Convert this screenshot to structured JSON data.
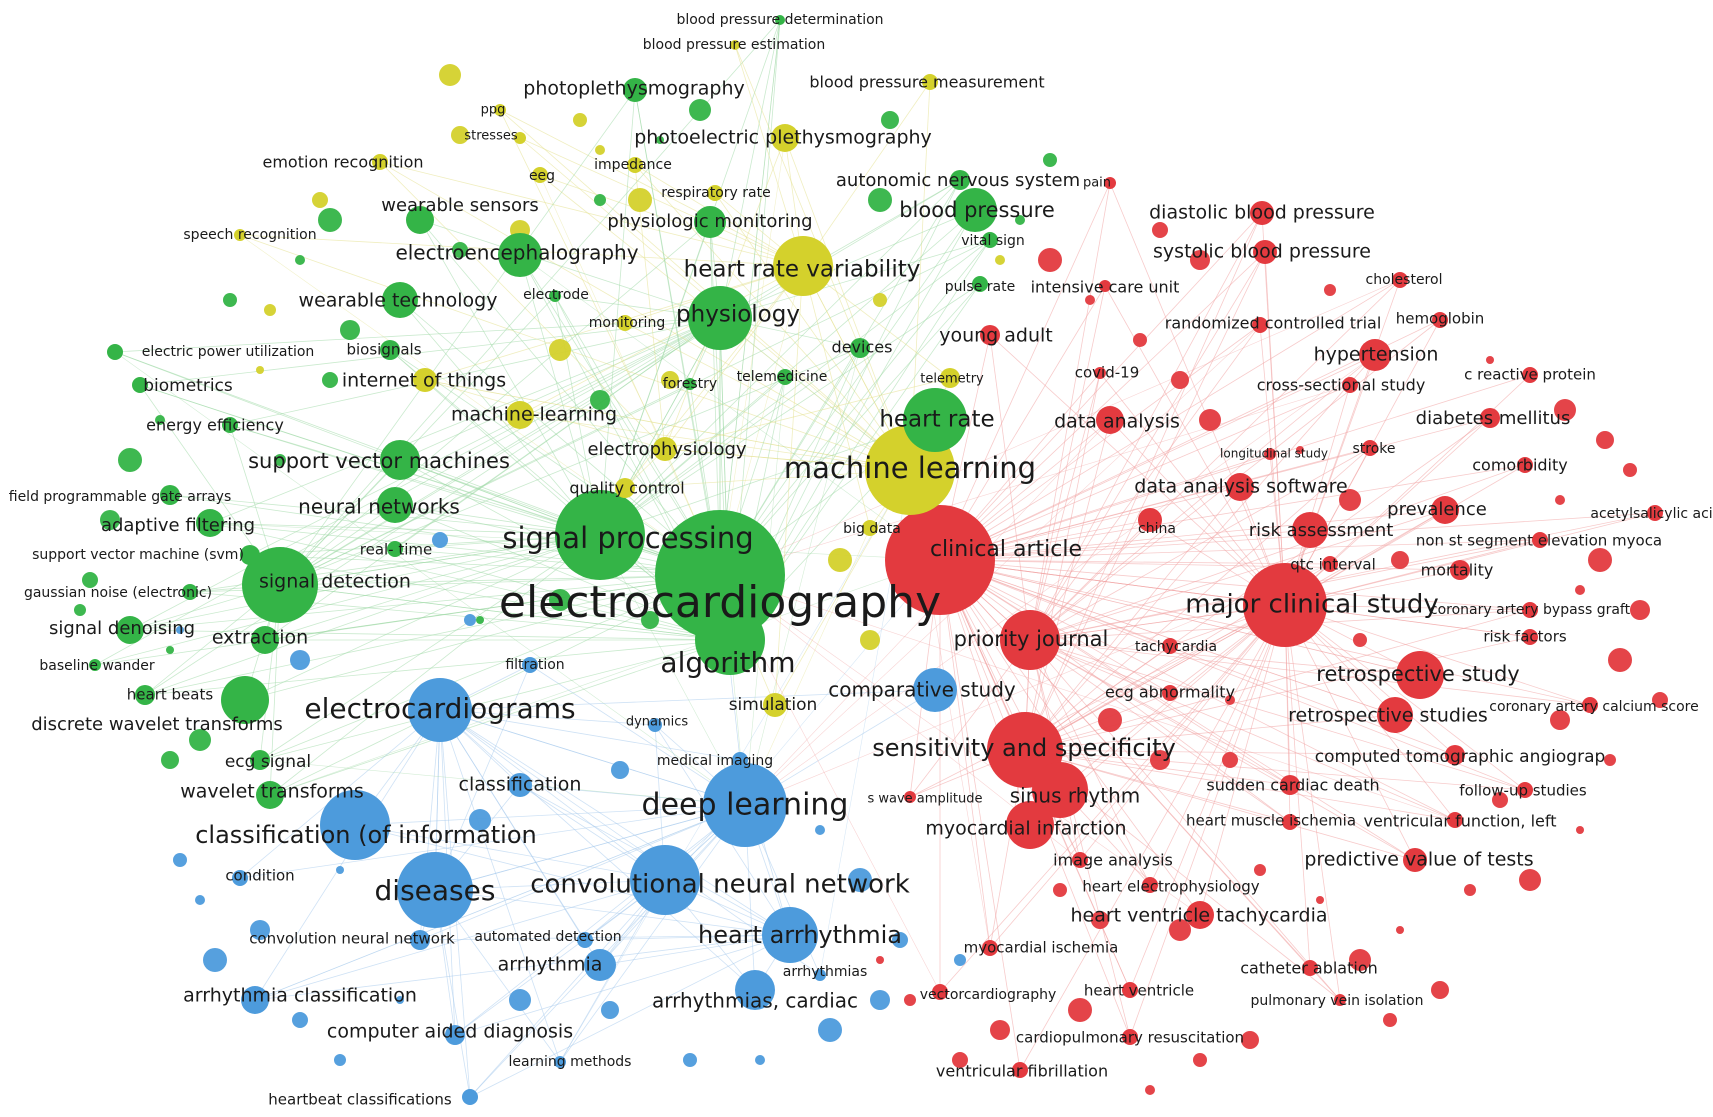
{
  "clusters": {
    "red": {
      "color": "#e33a3f",
      "link_color": "#f0a0a0"
    },
    "green": {
      "color": "#34b447",
      "link_color": "#9fd8a5"
    },
    "blue": {
      "color": "#4d9bdc",
      "link_color": "#a8cbec"
    },
    "yellow": {
      "color": "#d4d12c",
      "link_color": "#e3e08c"
    }
  },
  "keywords": [
    {
      "id": "electrocardiography",
      "label": "electrocardiography",
      "cluster": "green",
      "weight": 10
    },
    {
      "id": "signal-processing",
      "label": "signal processing",
      "cluster": "green",
      "weight": 6
    },
    {
      "id": "algorithm",
      "label": "algorithm",
      "cluster": "green",
      "weight": 5
    },
    {
      "id": "signal-detection",
      "label": "signal detection",
      "cluster": "green",
      "weight": 5
    },
    {
      "id": "electrocardiograms",
      "label": "electrocardiograms",
      "cluster": "blue",
      "weight": 5
    },
    {
      "id": "deep-learning",
      "label": "deep learning",
      "cluster": "blue",
      "weight": 6
    },
    {
      "id": "classification-info",
      "label": "classification (of information",
      "cluster": "blue",
      "weight": 5
    },
    {
      "id": "diseases",
      "label": "diseases",
      "cluster": "blue",
      "weight": 5
    },
    {
      "id": "cnn",
      "label": "convolutional neural network",
      "cluster": "blue",
      "weight": 5
    },
    {
      "id": "heart-arrhythmia",
      "label": "heart arrhythmia",
      "cluster": "blue",
      "weight": 4
    },
    {
      "id": "arrhythmias-cardiac",
      "label": "arrhythmias, cardiac",
      "cluster": "blue",
      "weight": 3
    },
    {
      "id": "arrhythmia",
      "label": "arrhythmia",
      "cluster": "blue",
      "weight": 2
    },
    {
      "id": "arrhythmia-classification",
      "label": "arrhythmia classification",
      "cluster": "blue",
      "weight": 2
    },
    {
      "id": "computer-aided-diagnosis",
      "label": "computer aided diagnosis",
      "cluster": "blue",
      "weight": 2
    },
    {
      "id": "learning-methods",
      "label": "learning methods",
      "cluster": "blue",
      "weight": 1
    },
    {
      "id": "heartbeat-classifications",
      "label": "heartbeat classifications",
      "cluster": "blue",
      "weight": 1
    },
    {
      "id": "convolution-neural-network",
      "label": "convolution neural network",
      "cluster": "blue",
      "weight": 2
    },
    {
      "id": "automated-detection",
      "label": "automated detection",
      "cluster": "blue",
      "weight": 1
    },
    {
      "id": "arrhythmias",
      "label": "arrhythmias",
      "cluster": "blue",
      "weight": 1
    },
    {
      "id": "condition",
      "label": "condition",
      "cluster": "blue",
      "weight": 1
    },
    {
      "id": "classification",
      "label": "classification",
      "cluster": "blue",
      "weight": 2
    },
    {
      "id": "medical-imaging",
      "label": "medical imaging",
      "cluster": "blue",
      "weight": 1
    },
    {
      "id": "dynamics",
      "label": "dynamics",
      "cluster": "blue",
      "weight": 1
    },
    {
      "id": "filtration",
      "label": "filtration",
      "cluster": "blue",
      "weight": 1
    },
    {
      "id": "wavelet-transforms",
      "label": "wavelet transforms",
      "cluster": "green",
      "weight": 2
    },
    {
      "id": "ecg-signal",
      "label": "ecg signal",
      "cluster": "green",
      "weight": 1
    },
    {
      "id": "discrete-wavelet-transforms",
      "label": "discrete wavelet transforms",
      "cluster": "green",
      "weight": 2
    },
    {
      "id": "heart-beats",
      "label": "heart beats",
      "cluster": "green",
      "weight": 1
    },
    {
      "id": "baseline-wander",
      "label": "baseline wander",
      "cluster": "green",
      "weight": 1
    },
    {
      "id": "signal-denoising",
      "label": "signal denoising",
      "cluster": "green",
      "weight": 2
    },
    {
      "id": "extraction",
      "label": "extraction",
      "cluster": "green",
      "weight": 2
    },
    {
      "id": "gaussian-noise",
      "label": "gaussian noise (electronic)",
      "cluster": "green",
      "weight": 1
    },
    {
      "id": "svm-paren",
      "label": "support vector machine (svm)",
      "cluster": "green",
      "weight": 1
    },
    {
      "id": "adaptive-filtering",
      "label": "adaptive filtering",
      "cluster": "green",
      "weight": 2
    },
    {
      "id": "fpga",
      "label": "field programmable gate arrays",
      "cluster": "green",
      "weight": 1
    },
    {
      "id": "neural-networks",
      "label": "neural networks",
      "cluster": "green",
      "weight": 3
    },
    {
      "id": "svms",
      "label": "support vector machines",
      "cluster": "green",
      "weight": 3
    },
    {
      "id": "energy-efficiency",
      "label": "energy efficiency",
      "cluster": "green",
      "weight": 1
    },
    {
      "id": "biometrics",
      "label": "biometrics",
      "cluster": "green",
      "weight": 2
    },
    {
      "id": "electric-power",
      "label": "electric power utilization",
      "cluster": "green",
      "weight": 1
    },
    {
      "id": "biosignals",
      "label": "biosignals",
      "cluster": "green",
      "weight": 1
    },
    {
      "id": "iot",
      "label": "internet of things",
      "cluster": "yellow",
      "weight": 2
    },
    {
      "id": "machine-learning-hyphen",
      "label": "machine-learning",
      "cluster": "yellow",
      "weight": 2
    },
    {
      "id": "wearable-technology",
      "label": "wearable technology",
      "cluster": "green",
      "weight": 2
    },
    {
      "id": "eeg-long",
      "label": "electroencephalography",
      "cluster": "green",
      "weight": 3
    },
    {
      "id": "wearable-sensors",
      "label": "wearable sensors",
      "cluster": "green",
      "weight": 2
    },
    {
      "id": "speech-recognition",
      "label": "speech recognition",
      "cluster": "yellow",
      "weight": 1
    },
    {
      "id": "emotion-recognition",
      "label": "emotion recognition",
      "cluster": "yellow",
      "weight": 1
    },
    {
      "id": "eeg",
      "label": "eeg",
      "cluster": "yellow",
      "weight": 1
    },
    {
      "id": "stresses",
      "label": "stresses",
      "cluster": "yellow",
      "weight": 1
    },
    {
      "id": "ppg",
      "label": "ppg",
      "cluster": "yellow",
      "weight": 1
    },
    {
      "id": "photoplethysmography",
      "label": "photoplethysmography",
      "cluster": "green",
      "weight": 2
    },
    {
      "id": "bp-determination",
      "label": "blood pressure determination",
      "cluster": "green",
      "weight": 1
    },
    {
      "id": "bp-estimation",
      "label": "blood pressure estimation",
      "cluster": "yellow",
      "weight": 1
    },
    {
      "id": "bp-measurement",
      "label": "blood pressure measurement",
      "cluster": "yellow",
      "weight": 2
    },
    {
      "id": "photoelectric-ppg",
      "label": "photoelectric plethysmography",
      "cluster": "yellow",
      "weight": 2
    },
    {
      "id": "impedance",
      "label": "impedance",
      "cluster": "yellow",
      "weight": 1
    },
    {
      "id": "respiratory-rate",
      "label": "respiratory rate",
      "cluster": "yellow",
      "weight": 1
    },
    {
      "id": "physiologic-monitoring",
      "label": "physiologic monitoring",
      "cluster": "green",
      "weight": 2
    },
    {
      "id": "autonomic-ns",
      "label": "autonomic nervous system",
      "cluster": "green",
      "weight": 2
    },
    {
      "id": "blood-pressure",
      "label": "blood pressure",
      "cluster": "green",
      "weight": 3
    },
    {
      "id": "pain",
      "label": "pain",
      "cluster": "red",
      "weight": 1
    },
    {
      "id": "vital-sign",
      "label": "vital sign",
      "cluster": "green",
      "weight": 1
    },
    {
      "id": "hrv",
      "label": "heart rate variability",
      "cluster": "yellow",
      "weight": 3
    },
    {
      "id": "electrode",
      "label": "electrode",
      "cluster": "green",
      "weight": 1
    },
    {
      "id": "monitoring",
      "label": "monitoring",
      "cluster": "yellow",
      "weight": 1
    },
    {
      "id": "physiology",
      "label": "physiology",
      "cluster": "green",
      "weight": 3
    },
    {
      "id": "pulse-rate",
      "label": "pulse rate",
      "cluster": "green",
      "weight": 1
    },
    {
      "id": "devices",
      "label": "devices",
      "cluster": "green",
      "weight": 1
    },
    {
      "id": "forestry",
      "label": "forestry",
      "cluster": "green",
      "weight": 1
    },
    {
      "id": "telemedicine",
      "label": "telemedicine",
      "cluster": "green",
      "weight": 1
    },
    {
      "id": "telemetry",
      "label": "telemetry",
      "cluster": "yellow",
      "weight": 1
    },
    {
      "id": "heart-rate",
      "label": "heart rate",
      "cluster": "green",
      "weight": 4
    },
    {
      "id": "machine-learning",
      "label": "machine learning",
      "cluster": "yellow",
      "weight": 6
    },
    {
      "id": "electrophysiology",
      "label": "electrophysiology",
      "cluster": "yellow",
      "weight": 2
    },
    {
      "id": "quality-control",
      "label": "quality control",
      "cluster": "yellow",
      "weight": 1
    },
    {
      "id": "big-data",
      "label": "big data",
      "cluster": "yellow",
      "weight": 1
    },
    {
      "id": "real-time",
      "label": "real- time",
      "cluster": "green",
      "weight": 1
    },
    {
      "id": "simulation",
      "label": "simulation",
      "cluster": "yellow",
      "weight": 1
    },
    {
      "id": "comparative-study",
      "label": "comparative study",
      "cluster": "blue",
      "weight": 3
    },
    {
      "id": "young-adult",
      "label": "young adult",
      "cluster": "red",
      "weight": 2
    },
    {
      "id": "icu",
      "label": "intensive care unit",
      "cluster": "red",
      "weight": 1
    },
    {
      "id": "covid",
      "label": "covid-19",
      "cluster": "red",
      "weight": 1
    },
    {
      "id": "data-analysis",
      "label": "data analysis",
      "cluster": "red",
      "weight": 2
    },
    {
      "id": "clinical-article",
      "label": "clinical article",
      "cluster": "red",
      "weight": 5
    },
    {
      "id": "priority-journal",
      "label": "priority journal",
      "cluster": "red",
      "weight": 4
    },
    {
      "id": "sensitivity-specificity",
      "label": "sensitivity and specificity",
      "cluster": "red",
      "weight": 4
    },
    {
      "id": "sinus-rhythm",
      "label": "sinus rhythm",
      "cluster": "red",
      "weight": 3
    },
    {
      "id": "myocardial-infarction",
      "label": "myocardial infarction",
      "cluster": "red",
      "weight": 3
    },
    {
      "id": "s-wave",
      "label": "s wave amplitude",
      "cluster": "red",
      "weight": 1
    },
    {
      "id": "image-analysis",
      "label": "image analysis",
      "cluster": "red",
      "weight": 2
    },
    {
      "id": "heart-ep",
      "label": "heart electrophysiology",
      "cluster": "red",
      "weight": 1
    },
    {
      "id": "hv-tachycardia",
      "label": "heart ventricle tachycardia",
      "cluster": "red",
      "weight": 2
    },
    {
      "id": "myocardial-ischemia",
      "label": "myocardial ischemia",
      "cluster": "red",
      "weight": 1
    },
    {
      "id": "vectorcardiography",
      "label": "vectorcardiography",
      "cluster": "red",
      "weight": 1
    },
    {
      "id": "heart-ventricle",
      "label": "heart ventricle",
      "cluster": "red",
      "weight": 1
    },
    {
      "id": "cpr",
      "label": "cardiopulmonary resuscitation",
      "cluster": "red",
      "weight": 1
    },
    {
      "id": "v-fib",
      "label": "ventricular fibrillation",
      "cluster": "red",
      "weight": 1
    },
    {
      "id": "catheter-ablation",
      "label": "catheter ablation",
      "cluster": "red",
      "weight": 1
    },
    {
      "id": "pv-isolation",
      "label": "pulmonary vein isolation",
      "cluster": "red",
      "weight": 1
    },
    {
      "id": "predictive-value",
      "label": "predictive value of tests",
      "cluster": "red",
      "weight": 2
    },
    {
      "id": "ventricular-function",
      "label": "ventricular function, left",
      "cluster": "red",
      "weight": 1
    },
    {
      "id": "heart-muscle-ischemia",
      "label": "heart muscle ischemia",
      "cluster": "red",
      "weight": 1
    },
    {
      "id": "follow-up",
      "label": "follow-up studies",
      "cluster": "red",
      "weight": 1
    },
    {
      "id": "sudden-cardiac-death",
      "label": "sudden cardiac death",
      "cluster": "red",
      "weight": 1
    },
    {
      "id": "ct-angiograp",
      "label": "computed tomographic angiograp",
      "cluster": "red",
      "weight": 1
    },
    {
      "id": "retrospective-studies",
      "label": "retrospective studies",
      "cluster": "red",
      "weight": 2
    },
    {
      "id": "cac-score",
      "label": "coronary artery calcium score",
      "cluster": "red",
      "weight": 1
    },
    {
      "id": "retrospective-study",
      "label": "retrospective study",
      "cluster": "red",
      "weight": 3
    },
    {
      "id": "risk-factors",
      "label": "risk factors",
      "cluster": "red",
      "weight": 1
    },
    {
      "id": "cabg",
      "label": "coronary artery bypass graft",
      "cluster": "red",
      "weight": 1
    },
    {
      "id": "mortality",
      "label": "mortality",
      "cluster": "red",
      "weight": 1
    },
    {
      "id": "nstemi",
      "label": "non st segment elevation myoca",
      "cluster": "red",
      "weight": 1
    },
    {
      "id": "acetylsalicylic",
      "label": "acetylsalicylic acid",
      "cluster": "red",
      "weight": 1
    },
    {
      "id": "prevalence",
      "label": "prevalence",
      "cluster": "red",
      "weight": 2
    },
    {
      "id": "comorbidity",
      "label": "comorbidity",
      "cluster": "red",
      "weight": 1
    },
    {
      "id": "stroke",
      "label": "stroke",
      "cluster": "red",
      "weight": 1
    },
    {
      "id": "diabetes",
      "label": "diabetes mellitus",
      "cluster": "red",
      "weight": 2
    },
    {
      "id": "crp",
      "label": "c reactive protein",
      "cluster": "red",
      "weight": 1
    },
    {
      "id": "cross-sectional",
      "label": "cross-sectional study",
      "cluster": "red",
      "weight": 1
    },
    {
      "id": "hypertension",
      "label": "hypertension",
      "cluster": "red",
      "weight": 2
    },
    {
      "id": "hemoglobin",
      "label": "hemoglobin",
      "cluster": "red",
      "weight": 1
    },
    {
      "id": "rct",
      "label": "randomized controlled trial",
      "cluster": "red",
      "weight": 1
    },
    {
      "id": "cholesterol",
      "label": "cholesterol",
      "cluster": "red",
      "weight": 1
    },
    {
      "id": "systolic-bp",
      "label": "systolic blood pressure",
      "cluster": "red",
      "weight": 2
    },
    {
      "id": "diastolic-bp",
      "label": "diastolic blood pressure",
      "cluster": "red",
      "weight": 2
    },
    {
      "id": "longitudinal",
      "label": "longitudinal study",
      "cluster": "red",
      "weight": 1
    },
    {
      "id": "data-analysis-software",
      "label": "data analysis software",
      "cluster": "red",
      "weight": 2
    },
    {
      "id": "risk-assessment",
      "label": "risk assessment",
      "cluster": "red",
      "weight": 2
    },
    {
      "id": "china",
      "label": "china",
      "cluster": "red",
      "weight": 1
    },
    {
      "id": "qtc",
      "label": "qtc interval",
      "cluster": "red",
      "weight": 1
    },
    {
      "id": "major-clinical-study",
      "label": "major clinical study",
      "cluster": "red",
      "weight": 5
    },
    {
      "id": "tachycardia",
      "label": "tachycardia",
      "cluster": "red",
      "weight": 1
    },
    {
      "id": "ecg-abnormality",
      "label": "ecg abnormality",
      "cluster": "red",
      "weight": 1
    }
  ]
}
